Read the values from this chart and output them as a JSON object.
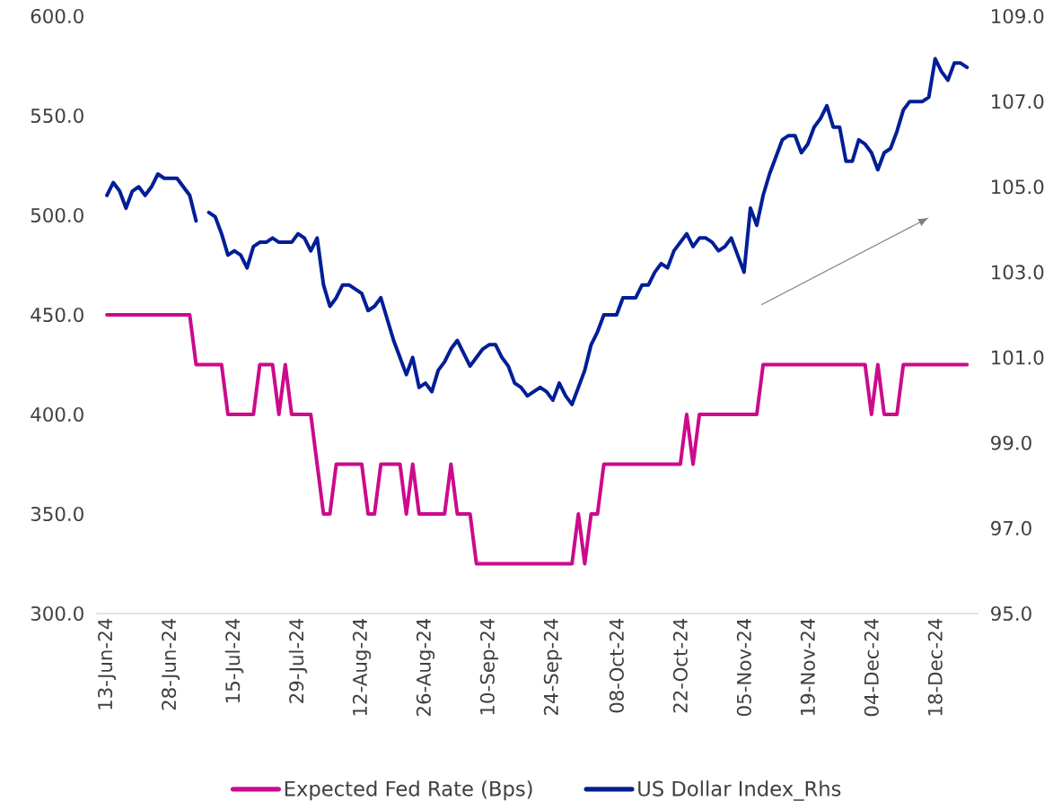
{
  "chart_data": {
    "type": "line",
    "categories": [
      "13-Jun-24",
      null,
      null,
      null,
      null,
      null,
      null,
      null,
      null,
      null,
      "28-Jun-24",
      null,
      null,
      null,
      null,
      null,
      null,
      null,
      null,
      null,
      "15-Jul-24",
      null,
      null,
      null,
      null,
      null,
      null,
      null,
      null,
      null,
      "29-Jul-24",
      null,
      null,
      null,
      null,
      null,
      null,
      null,
      null,
      null,
      "12-Aug-24",
      null,
      null,
      null,
      null,
      null,
      null,
      null,
      null,
      null,
      "26-Aug-24",
      null,
      null,
      null,
      null,
      null,
      null,
      null,
      null,
      null,
      "10-Sep-24",
      null,
      null,
      null,
      null,
      null,
      null,
      null,
      null,
      null,
      "24-Sep-24",
      null,
      null,
      null,
      null,
      null,
      null,
      null,
      null,
      null,
      "08-Oct-24",
      null,
      null,
      null,
      null,
      null,
      null,
      null,
      null,
      null,
      "22-Oct-24",
      null,
      null,
      null,
      null,
      null,
      null,
      null,
      null,
      null,
      "05-Nov-24",
      null,
      null,
      null,
      null,
      null,
      null,
      null,
      null,
      null,
      "19-Nov-24",
      null,
      null,
      null,
      null,
      null,
      null,
      null,
      null,
      null,
      "04-Dec-24",
      null,
      null,
      null,
      null,
      null,
      null,
      null,
      null,
      null,
      "18-Dec-24",
      null,
      null,
      null,
      null,
      null
    ],
    "series": [
      {
        "name": "Expected Fed Rate (Bps)",
        "color": "#cc0a8c",
        "values": [
          450,
          450,
          450,
          450,
          450,
          450,
          450,
          450,
          450,
          450,
          450,
          450,
          450,
          450,
          425,
          425,
          425,
          425,
          425,
          400,
          400,
          400,
          400,
          400,
          425,
          425,
          425,
          400,
          425,
          400,
          400,
          400,
          400,
          375,
          350,
          350,
          375,
          375,
          375,
          375,
          375,
          350,
          350,
          375,
          375,
          375,
          375,
          350,
          375,
          350,
          350,
          350,
          350,
          350,
          375,
          350,
          350,
          350,
          325,
          325,
          325,
          325,
          325,
          325,
          325,
          325,
          325,
          325,
          325,
          325,
          325,
          325,
          325,
          325,
          350,
          325,
          350,
          350,
          375,
          375,
          375,
          375,
          375,
          375,
          375,
          375,
          375,
          375,
          375,
          375,
          375,
          400,
          375,
          400,
          400,
          400,
          400,
          400,
          400,
          400,
          400,
          400,
          400,
          425,
          425,
          425,
          425,
          425,
          425,
          425,
          425,
          425,
          425,
          425,
          425,
          425,
          425,
          425,
          425,
          425,
          400,
          425,
          400,
          400,
          400,
          425,
          425,
          425,
          425,
          425,
          425,
          425,
          425,
          425,
          425,
          425
        ]
      },
      {
        "name": "US Dollar Index_Rhs",
        "color": "#001e96",
        "axis": "y2",
        "values": [
          104.8,
          105.1,
          104.9,
          104.5,
          104.9,
          105.0,
          104.8,
          105.0,
          105.3,
          105.2,
          105.2,
          105.2,
          105.0,
          104.8,
          104.2,
          null,
          104.4,
          104.3,
          103.9,
          103.4,
          103.5,
          103.4,
          103.1,
          103.6,
          103.7,
          103.7,
          103.8,
          103.7,
          103.7,
          103.7,
          103.9,
          103.8,
          103.5,
          103.8,
          102.7,
          102.2,
          102.4,
          102.7,
          102.7,
          102.6,
          102.5,
          102.1,
          102.2,
          102.4,
          101.9,
          101.4,
          101.0,
          100.6,
          101.0,
          100.3,
          100.4,
          100.2,
          100.7,
          100.9,
          101.2,
          101.4,
          101.1,
          100.8,
          101.0,
          101.2,
          101.3,
          101.3,
          101.0,
          100.8,
          100.4,
          100.3,
          100.1,
          100.2,
          100.3,
          100.2,
          100.0,
          100.4,
          100.1,
          99.9,
          100.3,
          100.7,
          101.3,
          101.6,
          102.0,
          102.0,
          102.0,
          102.4,
          102.4,
          102.4,
          102.7,
          102.7,
          103.0,
          103.2,
          103.1,
          103.5,
          103.7,
          103.9,
          103.6,
          103.8,
          103.8,
          103.7,
          103.5,
          103.6,
          103.8,
          103.4,
          103.0,
          104.5,
          104.1,
          104.8,
          105.3,
          105.7,
          106.1,
          106.2,
          106.2,
          105.8,
          106.0,
          106.4,
          106.6,
          106.9,
          106.4,
          106.4,
          105.6,
          105.6,
          106.1,
          106.0,
          105.8,
          105.4,
          105.8,
          105.9,
          106.3,
          106.8,
          107.0,
          107.0,
          107.0,
          107.1,
          108.0,
          107.7,
          107.5,
          107.9,
          107.9,
          107.8
        ]
      }
    ],
    "ylim": [
      300,
      600
    ],
    "yticks": [
      {
        "value": 300,
        "label": "300.0"
      },
      {
        "value": 350,
        "label": "350.0"
      },
      {
        "value": 400,
        "label": "400.0"
      },
      {
        "value": 450,
        "label": "450.0"
      },
      {
        "value": 500,
        "label": "500.0"
      },
      {
        "value": 550,
        "label": "550.0"
      },
      {
        "value": 600,
        "label": "600.0"
      }
    ],
    "y2lim": [
      95,
      109
    ],
    "y2ticks": [
      {
        "value": 95,
        "label": "95.0"
      },
      {
        "value": 97,
        "label": "97.0"
      },
      {
        "value": 99,
        "label": "99.0"
      },
      {
        "value": 101,
        "label": "101.0"
      },
      {
        "value": 103,
        "label": "103.0"
      },
      {
        "value": 105,
        "label": "105.0"
      },
      {
        "value": 107,
        "label": "107.0"
      },
      {
        "value": 109,
        "label": "109.0"
      }
    ],
    "legend": "bottom"
  }
}
